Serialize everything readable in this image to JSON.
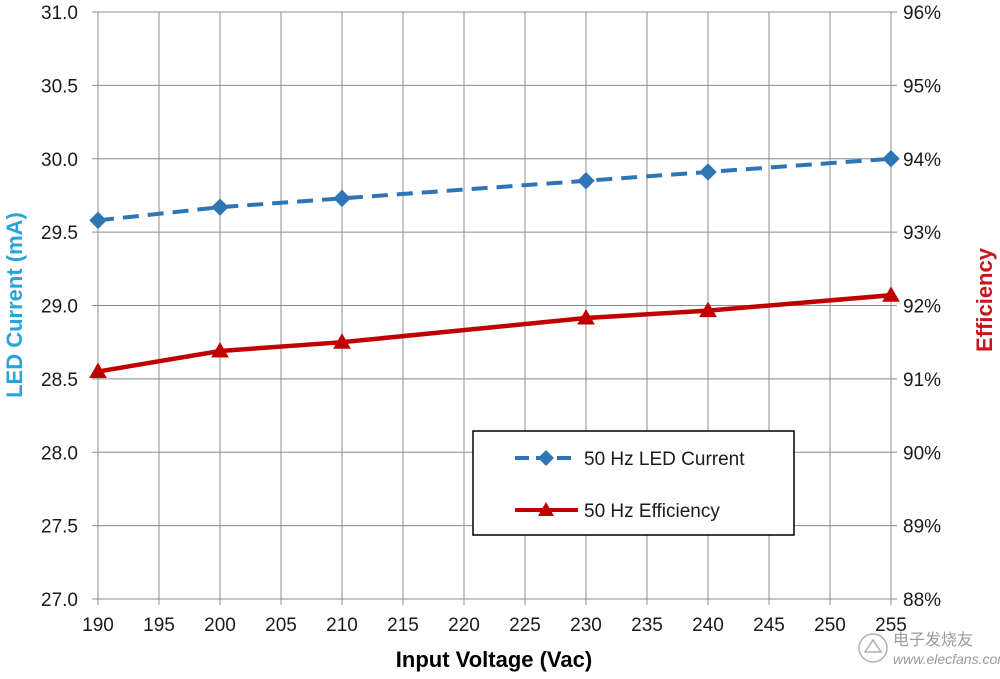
{
  "chart_data": {
    "type": "line",
    "title": "",
    "xlabel": "Input Voltage (Vac)",
    "ylabel_left": "LED Current (mA)",
    "ylabel_right": "Efficiency",
    "xlim": [
      190,
      255
    ],
    "ylim_left": [
      27.0,
      31.0
    ],
    "ylim_right": [
      88,
      96
    ],
    "grid": true,
    "x_ticks": [
      "190",
      "195",
      "200",
      "205",
      "210",
      "215",
      "220",
      "225",
      "230",
      "235",
      "240",
      "245",
      "250",
      "255"
    ],
    "y_left_ticks": [
      "27.0",
      "27.5",
      "28.0",
      "28.5",
      "29.0",
      "29.5",
      "30.0",
      "30.5",
      "31.0"
    ],
    "y_right_ticks": [
      "88%",
      "89%",
      "90%",
      "91%",
      "92%",
      "93%",
      "94%",
      "95%",
      "96%"
    ],
    "series": [
      {
        "name": "50 Hz LED Current",
        "axis": "left",
        "color": "#2e75b6",
        "style": "dashed",
        "marker": "diamond",
        "x": [
          190,
          200,
          210,
          230,
          240,
          255
        ],
        "values": [
          29.58,
          29.67,
          29.73,
          29.85,
          29.91,
          30.0
        ]
      },
      {
        "name": "50 Hz Efficiency",
        "axis": "right",
        "color": "#c00000",
        "style": "solid",
        "marker": "triangle",
        "x": [
          190,
          200,
          210,
          230,
          240,
          255
        ],
        "values": [
          91.1,
          91.38,
          91.5,
          91.83,
          91.93,
          92.14
        ]
      }
    ],
    "legend": {
      "placement": "lower-right-inside",
      "entries": [
        "50 Hz LED Current",
        "50 Hz Efficiency"
      ]
    }
  },
  "watermark": {
    "site_cn": "电子发烧友",
    "site_url": "www.elecfans.com"
  }
}
